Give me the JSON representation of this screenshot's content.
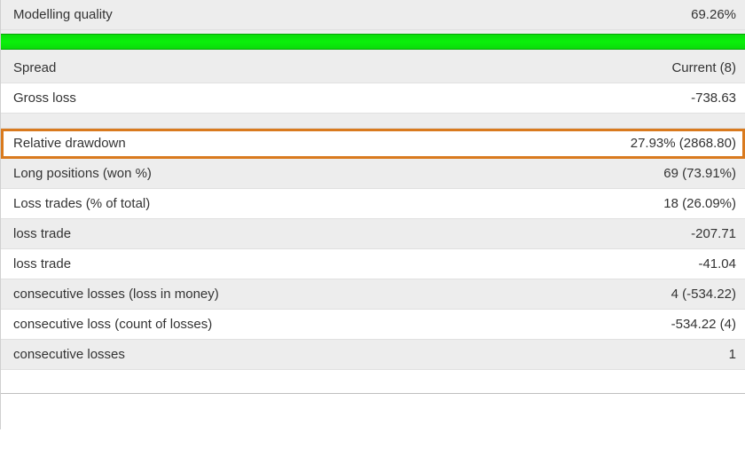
{
  "colors": {
    "row_shaded_bg": "#ededed",
    "row_white_bg": "#ffffff",
    "row_border": "#e0e0e0",
    "text": "#333333",
    "highlight_border": "#d97a1e",
    "progress_gradient_top": "#0bdc0b",
    "progress_gradient_mid": "#0bf00b",
    "progress_border": "#05a705",
    "footer_divider": "#bfbfbf"
  },
  "typography": {
    "font_family": "Segoe UI",
    "font_size_pt": 11
  },
  "rows": {
    "modelling_quality": {
      "label": "Modelling quality",
      "value": "69.26%"
    },
    "progress": {
      "percent": 100
    },
    "spread": {
      "label": "Spread",
      "value": "Current (8)"
    },
    "gross_loss": {
      "label": "Gross loss",
      "value": "-738.63"
    },
    "relative_drawdown": {
      "label": "Relative drawdown",
      "value": "27.93% (2868.80)",
      "highlighted": true
    },
    "long_positions": {
      "label": "Long positions (won %)",
      "value": "69 (73.91%)"
    },
    "loss_trades_pct": {
      "label": "Loss trades (% of total)",
      "value": "18 (26.09%)"
    },
    "loss_trade_1": {
      "label": "loss trade",
      "value": "-207.71"
    },
    "loss_trade_2": {
      "label": "loss trade",
      "value": "-41.04"
    },
    "consec_losses_money": {
      "label": "consecutive losses (loss in money)",
      "value": "4 (-534.22)"
    },
    "consec_loss_count": {
      "label": "consecutive loss (count of losses)",
      "value": "-534.22 (4)"
    },
    "consec_losses": {
      "label": "consecutive losses",
      "value": "1"
    }
  }
}
